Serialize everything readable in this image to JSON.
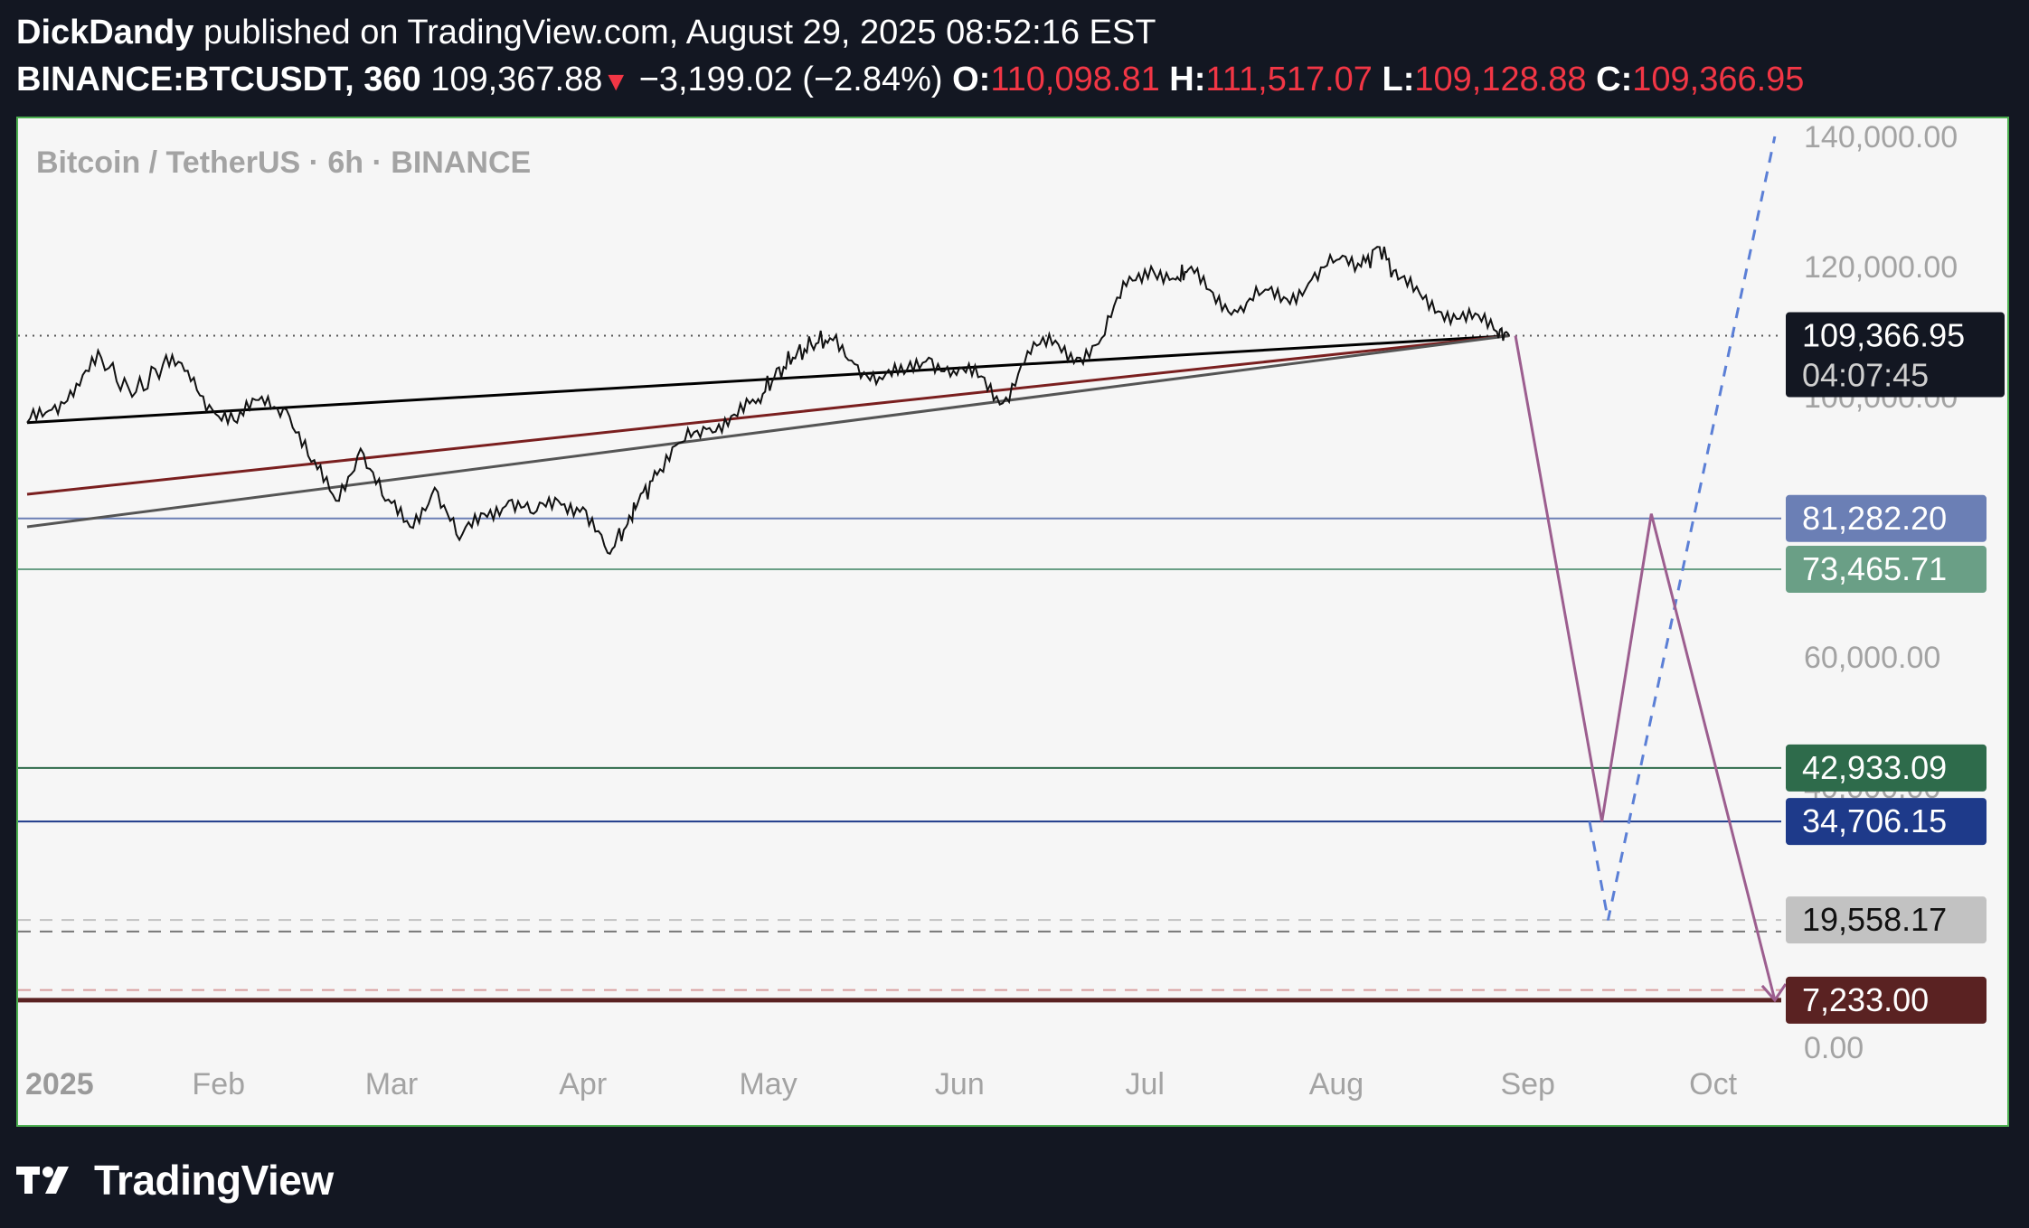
{
  "header": {
    "author": "DickDandy",
    "published_text": "published on TradingView.com, August 29, 2025 08:52:16 EST",
    "symbol": "BINANCE:BTCUSDT, 360",
    "last_price": "109,367.88",
    "change_arrow": "▼",
    "change": "−3,199.02 (−2.84%)",
    "open_label": "O:",
    "open": "110,098.81",
    "high_label": "H:",
    "high": "111,517.07",
    "low_label": "L:",
    "low": "109,128.88",
    "close_label": "C:",
    "close": "109,366.95"
  },
  "footer": {
    "brand": "TradingView"
  },
  "colors": {
    "frame": "#4caf50",
    "background": "#f6f6f6",
    "price_line": "#000000",
    "projection": "#9c5e8f",
    "projection_dashed": "#5b7fd6"
  },
  "chart_data": {
    "type": "line",
    "title": "Bitcoin / TetherUS · 6h · BINANCE",
    "interval": "6h",
    "ylim": [
      0,
      140000
    ],
    "y_ticks": [
      "140,000.00",
      "120,000.00",
      "100,000.00",
      "60,000.00",
      "40,000.00",
      "0.00"
    ],
    "y_tick_values": [
      140000,
      120000,
      100000,
      60000,
      40000,
      0
    ],
    "x_labels": [
      "2025",
      "Feb",
      "Mar",
      "Apr",
      "May",
      "Jun",
      "Jul",
      "Aug",
      "Sep",
      "Oct"
    ],
    "x_label_days": [
      0,
      31,
      59,
      90,
      120,
      151,
      181,
      212,
      243,
      273
    ],
    "x_start": "2025-01-01",
    "x_end": "2025-10-15",
    "price": {
      "x": [
        0,
        4,
        8,
        12,
        17,
        22,
        26,
        30,
        34,
        38,
        42,
        46,
        50,
        54,
        58,
        62,
        66,
        70,
        74,
        78,
        82,
        86,
        90,
        94,
        97,
        99,
        102,
        106,
        110,
        114,
        118,
        121,
        124,
        127,
        130,
        134,
        138,
        142,
        146,
        150,
        154,
        158,
        162,
        166,
        170,
        174,
        178,
        182,
        186,
        188,
        192,
        196,
        200,
        204,
        208,
        212,
        216,
        219,
        222,
        226,
        230,
        234,
        238,
        240
      ],
      "y": [
        96000,
        98000,
        102000,
        106000,
        100000,
        105000,
        104000,
        98000,
        96000,
        100000,
        98000,
        90000,
        84000,
        92000,
        84000,
        80000,
        86000,
        78000,
        82000,
        84000,
        82000,
        84000,
        83000,
        76000,
        80000,
        84000,
        88000,
        93000,
        95000,
        97000,
        99000,
        103000,
        106000,
        108000,
        109000,
        105000,
        103000,
        103500,
        106000,
        104000,
        103000,
        99000,
        107000,
        108000,
        106000,
        109000,
        117000,
        120000,
        118000,
        119500,
        116000,
        113000,
        116000,
        115000,
        118000,
        121000,
        120000,
        123000,
        118000,
        115000,
        113000,
        112000,
        110000,
        109367
      ]
    },
    "horizontal_levels": [
      {
        "value": 81282.2,
        "label": "81,282.20",
        "color": "#6b7fb5",
        "style": "solid"
      },
      {
        "value": 73465.71,
        "label": "73,465.71",
        "color": "#6a9f86",
        "style": "solid"
      },
      {
        "value": 42933.09,
        "label": "42,933.09",
        "color": "#2e6b4b",
        "style": "solid"
      },
      {
        "value": 34706.15,
        "label": "34,706.15",
        "color": "#1e3a8a",
        "style": "solid"
      },
      {
        "value": 19558.17,
        "label": "19,558.17",
        "color": "#c2c2c2",
        "style": "dashed"
      },
      {
        "value": 7233.0,
        "label": "7,233.00",
        "color": "#5a2222",
        "style": "solid"
      }
    ],
    "current_price": {
      "value": 109366.95,
      "label": "109,366.95",
      "countdown": "04:07:45"
    },
    "trendlines": [
      {
        "color": "#000000",
        "from": [
          0,
          96000
        ],
        "to": [
          240,
          109367
        ]
      },
      {
        "color": "#7a1f1f",
        "from": [
          0,
          85000
        ],
        "to": [
          240,
          109367
        ]
      },
      {
        "color": "#555555",
        "from": [
          0,
          80000
        ],
        "to": [
          240,
          109367
        ]
      }
    ],
    "projection_solid": {
      "x": [
        241,
        255,
        263,
        283
      ],
      "y": [
        109367,
        34706,
        82000,
        7233
      ]
    },
    "projection_dashed": {
      "x": [
        253,
        256,
        283
      ],
      "y": [
        34706,
        19558,
        140000
      ]
    }
  }
}
